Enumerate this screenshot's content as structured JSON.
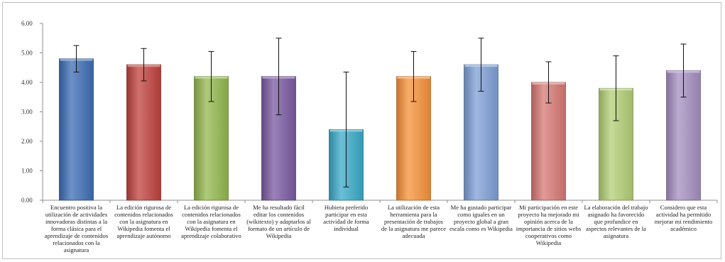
{
  "chart_data": {
    "type": "bar",
    "title": "",
    "xlabel": "",
    "ylabel": "",
    "ylim": [
      0,
      6
    ],
    "yticks": [
      "0.00",
      "1.00",
      "2.00",
      "3.00",
      "4.00",
      "5.00",
      "6.00"
    ],
    "grid": false,
    "legend": "none",
    "categories": [
      "Encuentro positiva la utilización de actividades innovadoras distintas a la forma clásica para el aprendizaje de contenidos relacionados con la asignatura",
      "La edición rigurosa de contenidos relacionados con la asignatura en Wikipedia fomenta el aprendizaje autónomo",
      "La edición rigurosa de contenidos relacionados con la asignatura en Wikipedia fomenta el aprendizaje colaborativo",
      "Me ha resultado fácil editar los contenidos (wikitexto) y adaptarlos al formato de un artículo de Wikipedia",
      "Hubiera preferido participar en esta actividad de forma individual",
      "La utilización de esta herramienta para la presentación de trabajos de la asignatura me parece adecuada",
      "Me ha gustado participar como iguales en un proyecto global a gran escala como es Wikipedia",
      "Mi participación en este proyecto ha mejorado mi opinión acerca de la importancia de sitios webs cooperativos como Wikipedia",
      "La elaboración del trabajo asignado ha favorecido que profundice en aspectos relevantes de la asignatura",
      "Considero que esta actividad ha permitido mejorar mi rendimiento académico"
    ],
    "values": [
      4.8,
      4.6,
      4.2,
      4.2,
      2.4,
      4.2,
      4.6,
      4.0,
      3.8,
      4.4
    ],
    "error_low": [
      4.35,
      4.05,
      3.35,
      2.9,
      0.45,
      3.35,
      3.7,
      3.3,
      2.7,
      3.5
    ],
    "error_high": [
      5.25,
      5.15,
      5.05,
      5.5,
      4.35,
      5.05,
      5.5,
      4.7,
      4.9,
      5.3
    ],
    "colors": [
      "#3d6db5",
      "#c0423d",
      "#93b84e",
      "#7a5aa2",
      "#3aaac8",
      "#f7913a",
      "#7f9fd6",
      "#d77874",
      "#b3cf76",
      "#a48fc0"
    ]
  }
}
